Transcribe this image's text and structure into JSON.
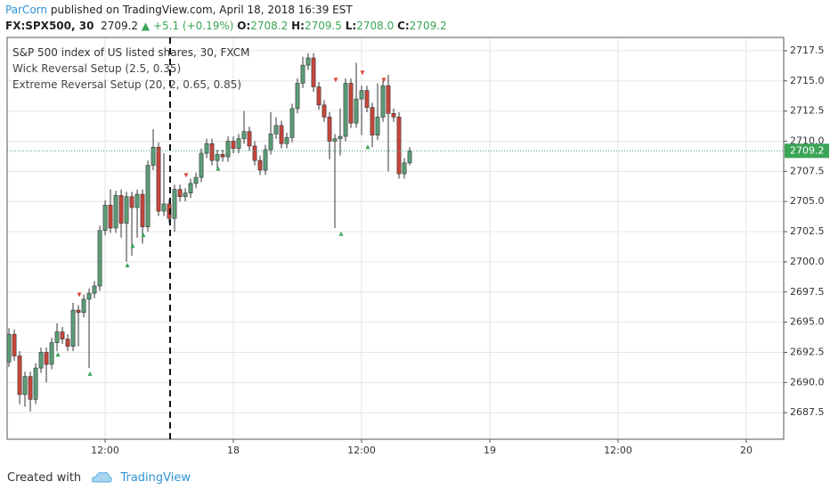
{
  "header": {
    "author": "ParCorn",
    "published": "published on TradingView.com, April 18, 2018 16:39 EST",
    "symbol": "FX:SPX500, 30",
    "last": "2709.2",
    "arrow": "▲",
    "change": "+5.1 (+0.19%)",
    "o_label": "O:",
    "o": "2708.2",
    "h_label": "H:",
    "h": "2709.5",
    "l_label": "L:",
    "l": "2708.0",
    "c_label": "C:",
    "c": "2709.2"
  },
  "chart_data": {
    "type": "candlestick",
    "legend": [
      "S&P 500 index of US listed shares, 30, FXCM",
      "Wick Reversal Setup (2.5, 0.35)",
      "Extreme Reversal Setup (20, 2, 0.65, 0.85)"
    ],
    "up_color": "#5b9e76",
    "down_color": "#c8453a",
    "x": [
      3.0,
      3.5,
      4.0,
      4.5,
      5.0,
      5.5,
      6.0,
      6.5,
      7.0,
      7.5,
      8.0,
      8.5,
      9.0,
      9.5,
      10.0,
      10.5,
      11.0,
      11.5,
      12.0,
      12.5,
      13.0,
      13.5,
      14.0,
      14.5,
      15.0,
      15.5,
      16.0,
      16.5,
      17.0,
      17.5,
      18.0,
      18.5,
      19.0,
      19.5,
      20.0,
      20.5,
      21.0,
      21.5,
      22.0,
      22.5,
      23.0,
      23.5,
      24.0,
      24.5,
      25.0,
      25.5,
      26.0,
      26.5,
      27.0,
      27.5,
      28.0,
      28.5,
      29.0,
      29.5,
      30.0,
      30.5,
      31.0,
      31.5,
      32.0,
      32.5,
      33.0,
      33.5,
      34.0,
      34.5,
      35.0,
      35.5,
      36.0,
      36.5,
      37.0,
      37.5,
      38.0,
      38.5,
      39.0,
      39.5,
      40.0,
      40.5
    ],
    "open": [
      2691.7,
      2694.0,
      2692.2,
      2689.0,
      2690.5,
      2688.6,
      2691.2,
      2692.5,
      2691.5,
      2693.3,
      2694.2,
      2693.6,
      2693.0,
      2696.0,
      2695.8,
      2696.9,
      2697.4,
      2698.0,
      2702.6,
      2704.7,
      2702.8,
      2705.5,
      2703.2,
      2705.4,
      2704.5,
      2705.6,
      2702.9,
      2708.0,
      2709.5,
      2704.2,
      2704.8,
      2703.6,
      2706.0,
      2705.4,
      2705.7,
      2706.5,
      2707.0,
      2709.0,
      2709.8,
      2708.4,
      2708.9,
      2708.7,
      2710.0,
      2709.4,
      2710.2,
      2710.8,
      2709.6,
      2708.4,
      2707.6,
      2709.3,
      2710.6,
      2711.3,
      2709.8,
      2710.3,
      2712.7,
      2714.8,
      2716.3,
      2716.9,
      2714.5,
      2713.0,
      2712.0,
      2710.0,
      2710.2,
      2710.4,
      2714.8,
      2711.5,
      2713.5,
      2714.2,
      2712.8,
      2710.5,
      2712.0,
      2714.6,
      2712.3,
      2712.0,
      2707.3,
      2708.2
    ],
    "high": [
      2694.5,
      2694.4,
      2692.6,
      2690.9,
      2690.9,
      2691.6,
      2692.9,
      2692.9,
      2693.7,
      2694.9,
      2694.6,
      2694.0,
      2696.6,
      2696.4,
      2697.3,
      2697.8,
      2698.4,
      2703.0,
      2705.1,
      2706.0,
      2705.9,
      2706.0,
      2705.8,
      2705.8,
      2706.0,
      2706.0,
      2708.4,
      2711.0,
      2709.9,
      2709.0,
      2705.2,
      2706.4,
      2706.4,
      2706.1,
      2706.9,
      2707.4,
      2709.4,
      2710.2,
      2710.2,
      2709.3,
      2709.3,
      2710.4,
      2710.4,
      2710.6,
      2712.5,
      2711.2,
      2710.0,
      2708.8,
      2709.7,
      2712.4,
      2712.0,
      2711.7,
      2710.7,
      2713.1,
      2715.2,
      2717.0,
      2717.3,
      2717.3,
      2714.9,
      2713.4,
      2712.4,
      2710.6,
      2712.7,
      2715.2,
      2715.2,
      2716.5,
      2714.6,
      2714.6,
      2713.2,
      2714.8,
      2715.0,
      2715.5,
      2712.7,
      2712.4,
      2708.6,
      2709.5
    ],
    "low": [
      2691.3,
      2691.8,
      2688.2,
      2688.0,
      2687.6,
      2688.2,
      2690.8,
      2690.0,
      2691.1,
      2692.6,
      2693.2,
      2692.6,
      2692.6,
      2693.0,
      2695.4,
      2691.2,
      2697.0,
      2697.6,
      2702.2,
      2702.4,
      2702.4,
      2702.0,
      2700.0,
      2700.5,
      2702.0,
      2701.5,
      2702.5,
      2707.6,
      2703.8,
      2703.8,
      2703.2,
      2702.5,
      2705.0,
      2705.0,
      2705.3,
      2706.1,
      2706.6,
      2708.6,
      2708.0,
      2707.6,
      2708.3,
      2708.3,
      2709.0,
      2709.0,
      2709.8,
      2709.2,
      2708.0,
      2707.2,
      2707.2,
      2708.9,
      2710.2,
      2709.4,
      2709.4,
      2709.9,
      2712.3,
      2714.4,
      2715.9,
      2714.1,
      2712.6,
      2711.6,
      2708.5,
      2702.8,
      2708.8,
      2710.0,
      2711.1,
      2711.1,
      2710.5,
      2712.4,
      2709.5,
      2710.1,
      2711.6,
      2707.5,
      2711.6,
      2706.9,
      2706.9,
      2708.0
    ],
    "close": [
      2694.0,
      2692.2,
      2689.0,
      2690.5,
      2688.6,
      2691.2,
      2692.5,
      2691.5,
      2693.3,
      2694.2,
      2693.6,
      2693.0,
      2696.0,
      2695.8,
      2696.9,
      2697.4,
      2698.0,
      2702.6,
      2704.7,
      2702.8,
      2705.5,
      2703.2,
      2705.4,
      2704.5,
      2705.6,
      2702.9,
      2708.0,
      2709.5,
      2704.2,
      2704.8,
      2703.6,
      2706.0,
      2705.4,
      2705.7,
      2706.5,
      2707.0,
      2709.0,
      2709.8,
      2708.4,
      2708.9,
      2708.7,
      2710.0,
      2709.4,
      2710.2,
      2710.8,
      2709.6,
      2708.4,
      2707.6,
      2709.3,
      2710.6,
      2711.3,
      2709.8,
      2710.3,
      2712.7,
      2714.8,
      2716.3,
      2716.9,
      2714.5,
      2713.0,
      2712.0,
      2710.0,
      2710.2,
      2710.4,
      2714.8,
      2711.5,
      2713.5,
      2714.2,
      2712.8,
      2710.5,
      2712.0,
      2714.6,
      2712.3,
      2712.0,
      2707.3,
      2708.2,
      2709.2
    ],
    "up_signals": {
      "color": "#3aa557",
      "x": [
        7.58,
        10.58,
        14.08,
        14.58,
        15.58,
        22.58,
        34.08,
        36.58
      ],
      "y": [
        2692.3,
        2690.7,
        2699.7,
        2701.3,
        2702.2,
        2707.7,
        2702.3,
        2709.5
      ]
    },
    "down_signals": {
      "color": "#e0473a",
      "x": [
        9.58,
        19.58,
        33.58,
        36.08,
        38.08
      ],
      "y": [
        2697.3,
        2707.2,
        2715.1,
        2715.7,
        2715.1
      ]
    },
    "vline_x": 18.08,
    "last_price_color": "#3aa557",
    "xlim": [
      2.83,
      75.5
    ],
    "xticks": [
      {
        "value": 12,
        "label": "12:00"
      },
      {
        "value": 24,
        "label": "18"
      },
      {
        "value": 36,
        "label": "12:00"
      },
      {
        "value": 48,
        "label": "19"
      },
      {
        "value": 60,
        "label": "12:00"
      },
      {
        "value": 72,
        "label": "20"
      }
    ],
    "ylim": [
      2685.3,
      2718.6
    ],
    "yticks": [
      2687.5,
      {
        "value": 2690,
        "label": "2690.0"
      },
      2692.5,
      {
        "value": 2695,
        "label": "2695.0"
      },
      2697.5,
      {
        "value": 2700,
        "label": "2700.0"
      },
      2702.5,
      {
        "value": 2705,
        "label": "2705.0"
      },
      2707.5,
      {
        "value": 2710,
        "label": "2710.0"
      },
      2712.5,
      {
        "value": 2715,
        "label": "2715.0"
      },
      2717.5
    ],
    "grid": true
  },
  "footer": {
    "created": "Created with",
    "brand": "TradingView"
  }
}
